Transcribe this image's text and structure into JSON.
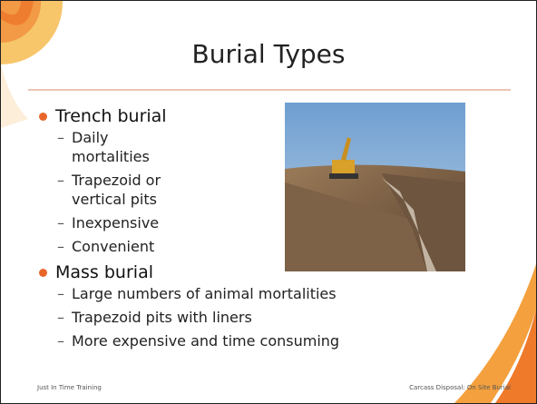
{
  "slide": {
    "title": "Burial Types",
    "bullets": [
      {
        "text": "Trench burial",
        "subitems": [
          "Daily mortalities",
          "Trapezoid or vertical pits",
          "Inexpensive",
          "Convenient"
        ]
      },
      {
        "text": "Mass burial",
        "subitems": [
          "Large numbers of animal mortalities",
          "Trapezoid pits with liners",
          "More expensive and time consuming"
        ]
      }
    ]
  },
  "footer": {
    "left": "Just In Time Training",
    "right": "Carcass Disposal: On Site Burial"
  }
}
